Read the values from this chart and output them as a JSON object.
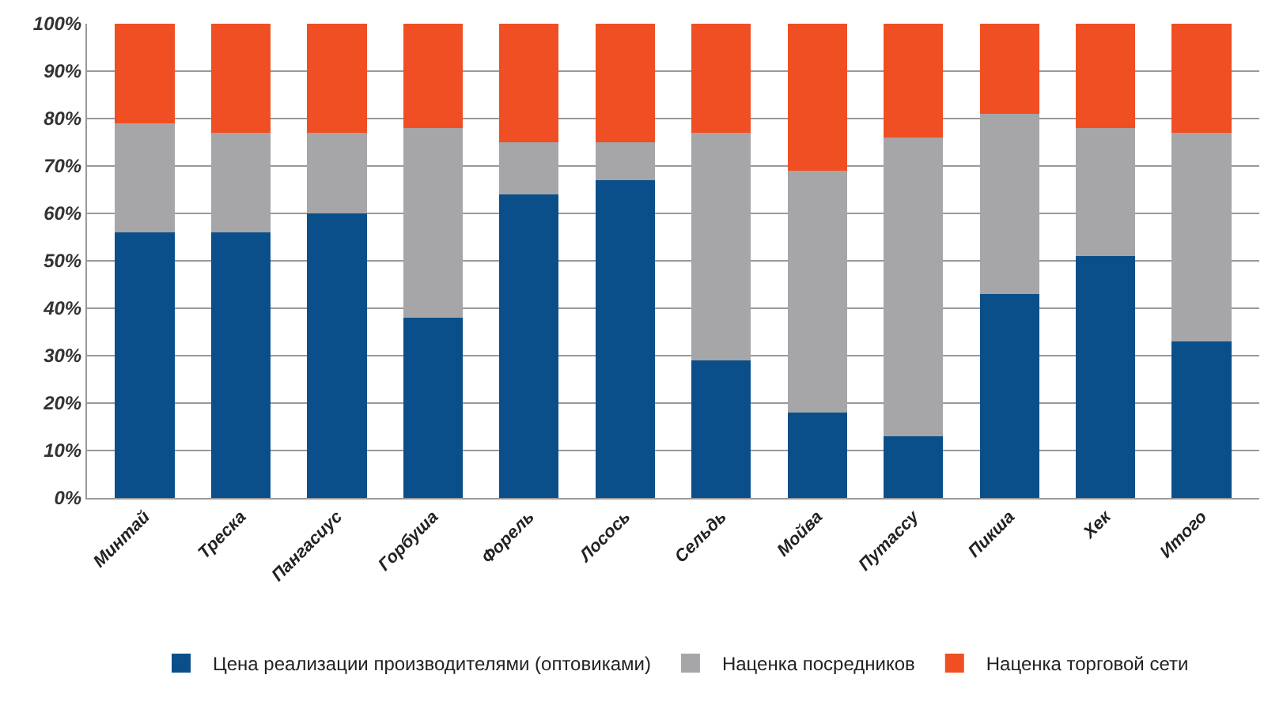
{
  "chart_data": {
    "type": "bar",
    "stacked": true,
    "categories": [
      "Минтай",
      "Треска",
      "Пангасиус",
      "Горбуша",
      "Форель",
      "Лосось",
      "Сельдь",
      "Мойва",
      "Путассу",
      "Пикша",
      "Хек",
      "Итого"
    ],
    "series": [
      {
        "name": "Цена реализации производителями (оптовиками)",
        "color": "#0a4f8a",
        "values": [
          56,
          56,
          60,
          38,
          64,
          67,
          29,
          18,
          13,
          43,
          51,
          33
        ]
      },
      {
        "name": "Наценка посредников",
        "color": "#a6a6a8",
        "values": [
          23,
          21,
          17,
          40,
          11,
          8,
          48,
          51,
          63,
          38,
          27,
          44
        ]
      },
      {
        "name": "Наценка торговой сети",
        "color": "#f04e23",
        "values": [
          21,
          23,
          23,
          22,
          25,
          25,
          23,
          31,
          24,
          19,
          22,
          23
        ]
      }
    ],
    "ylim": [
      0,
      100
    ],
    "yticks": [
      {
        "value": 0,
        "label": "0%"
      },
      {
        "value": 10,
        "label": "10%"
      },
      {
        "value": 20,
        "label": "20%"
      },
      {
        "value": 30,
        "label": "30%"
      },
      {
        "value": 40,
        "label": "40%"
      },
      {
        "value": 50,
        "label": "50%"
      },
      {
        "value": 60,
        "label": "60%"
      },
      {
        "value": 70,
        "label": "70%"
      },
      {
        "value": 80,
        "label": "80%"
      },
      {
        "value": 90,
        "label": "90%"
      },
      {
        "value": 100,
        "label": "100%"
      }
    ],
    "grid": "y",
    "legend": "bottom"
  }
}
